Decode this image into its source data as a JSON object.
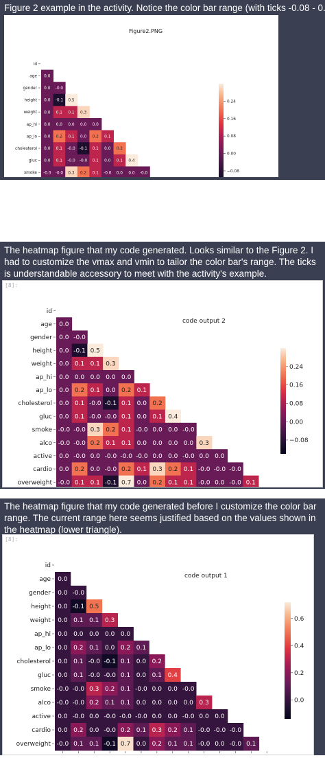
{
  "sections": [
    {
      "caption": "Figure 2 example in the activity. Notice the color bar range (with ticks -0.08 - 0.24)",
      "figure_title": "Figure2.PNG",
      "cell_number": ""
    },
    {
      "caption": "The heatmap figure that my code generated. Looks similar to the Figure 2. I had to customize the vmax and vmin to tailor the color bar's range. The ticks is understandable accessory to meet with the activity's example.",
      "figure_title": "code output 2",
      "cell_number": "[8]:"
    },
    {
      "caption": "The heatmap figure that my code generated before I customize the color bar range. The current range here seems justified based on the values shown in the heatmap (lower triangle).",
      "figure_title": "code output 1",
      "cell_number": "[8]:"
    }
  ],
  "colors": {
    "caption_bg": "#3b3f52",
    "caption_text": "#ffffff",
    "outer_frame": "#3b3f52"
  },
  "chart_data": [
    {
      "type": "heatmap",
      "title": "Figure2.PNG",
      "labels": [
        "id",
        "age",
        "gender",
        "height",
        "weight",
        "ap_hi",
        "ap_lo",
        "cholesterol",
        "gluc",
        "smoke",
        "alco",
        "active",
        "cardio",
        "overweight"
      ],
      "rows": [
        [],
        [
          "0.0"
        ],
        [
          "0.0",
          "-0.0"
        ],
        [
          "0.0",
          "-0.1",
          "0.5"
        ],
        [
          "0.0",
          "0.1",
          "0.1",
          "0.3"
        ],
        [
          "0.0",
          "0.0",
          "0.0",
          "0.0",
          "0.0"
        ],
        [
          "0.0",
          "0.2",
          "0.1",
          "0.0",
          "0.2",
          "0.1"
        ],
        [
          "0.0",
          "0.1",
          "-0.0",
          "-0.1",
          "0.1",
          "0.0",
          "0.2"
        ],
        [
          "0.0",
          "0.1",
          "-0.0",
          "-0.0",
          "0.1",
          "0.0",
          "0.1",
          "0.4"
        ],
        [
          "-0.0",
          "-0.0",
          "0.3",
          "0.2",
          "0.1",
          "-0.0",
          "0.0",
          "0.0",
          "-0.0"
        ],
        [
          "-0.0",
          "-0.0",
          "0.2",
          "0.1",
          "0.1",
          "0.0",
          "0.0",
          "0.0",
          "0.0",
          "0.3"
        ],
        [
          "0.0",
          "-0.0",
          "0.0",
          "-0.0",
          "-0.0",
          "-0.0",
          "0.0",
          "0.0",
          "-0.0",
          "0.0",
          "0.0"
        ],
        [
          "0.0",
          "0.2",
          "0.0",
          "-0.0",
          "0.2",
          "0.1",
          "0.3",
          "0.2",
          "0.1",
          "-0.0",
          "-0.0",
          "-0.0"
        ],
        [
          "-0.0",
          "0.1",
          "0.1",
          "-0.1",
          "0.7",
          "0.0",
          "0.2",
          "0.1",
          "0.1",
          "-0.0",
          "0.0",
          "-0.0",
          "0.1"
        ]
      ],
      "colorbar": {
        "ticks": [
          0.24,
          0.16,
          0.08,
          0.0,
          -0.08
        ],
        "vmin": -0.14,
        "vmax": 0.32
      }
    },
    {
      "type": "heatmap",
      "title": "code output 2",
      "labels": [
        "id",
        "age",
        "gender",
        "height",
        "weight",
        "ap_hi",
        "ap_lo",
        "cholesterol",
        "gluc",
        "smoke",
        "alco",
        "active",
        "cardio",
        "overweight"
      ],
      "rows": [
        [],
        [
          "0.0"
        ],
        [
          "0.0",
          "-0.0"
        ],
        [
          "0.0",
          "-0.1",
          "0.5"
        ],
        [
          "0.0",
          "0.1",
          "0.1",
          "0.3"
        ],
        [
          "0.0",
          "0.0",
          "0.0",
          "0.0",
          "0.0"
        ],
        [
          "0.0",
          "0.2",
          "0.1",
          "0.0",
          "0.2",
          "0.1"
        ],
        [
          "0.0",
          "0.1",
          "-0.0",
          "-0.1",
          "0.1",
          "0.0",
          "0.2"
        ],
        [
          "0.0",
          "0.1",
          "-0.0",
          "-0.0",
          "0.1",
          "0.0",
          "0.1",
          "0.4"
        ],
        [
          "-0.0",
          "-0.0",
          "0.3",
          "0.2",
          "0.1",
          "-0.0",
          "0.0",
          "0.0",
          "-0.0"
        ],
        [
          "-0.0",
          "-0.0",
          "0.2",
          "0.1",
          "0.1",
          "0.0",
          "0.0",
          "0.0",
          "0.0",
          "0.3"
        ],
        [
          "0.0",
          "-0.0",
          "0.0",
          "-0.0",
          "-0.0",
          "-0.0",
          "0.0",
          "0.0",
          "-0.0",
          "0.0",
          "0.0"
        ],
        [
          "0.0",
          "0.2",
          "0.0",
          "-0.0",
          "0.2",
          "0.1",
          "0.3",
          "0.2",
          "0.1",
          "-0.0",
          "-0.0",
          "-0.0"
        ],
        [
          "-0.0",
          "0.1",
          "0.1",
          "-0.1",
          "0.7",
          "0.0",
          "0.2",
          "0.1",
          "0.1",
          "-0.0",
          "0.0",
          "-0.0",
          "0.1"
        ]
      ],
      "colorbar": {
        "ticks": [
          0.24,
          0.16,
          0.08,
          0.0,
          -0.08
        ],
        "vmin": -0.14,
        "vmax": 0.32
      }
    },
    {
      "type": "heatmap",
      "title": "code output 1",
      "labels": [
        "id",
        "age",
        "gender",
        "height",
        "weight",
        "ap_hi",
        "ap_lo",
        "cholesterol",
        "gluc",
        "smoke",
        "alco",
        "active",
        "cardio",
        "overweight"
      ],
      "rows": [
        [],
        [
          "0.0"
        ],
        [
          "0.0",
          "-0.0"
        ],
        [
          "0.0",
          "-0.1",
          "0.5"
        ],
        [
          "0.0",
          "0.1",
          "0.1",
          "0.3"
        ],
        [
          "0.0",
          "0.0",
          "0.0",
          "0.0",
          "0.0"
        ],
        [
          "0.0",
          "0.2",
          "0.1",
          "0.0",
          "0.2",
          "0.1"
        ],
        [
          "0.0",
          "0.1",
          "-0.0",
          "-0.1",
          "0.1",
          "0.0",
          "0.2"
        ],
        [
          "0.0",
          "0.1",
          "-0.0",
          "-0.0",
          "0.1",
          "0.0",
          "0.1",
          "0.4"
        ],
        [
          "-0.0",
          "-0.0",
          "0.3",
          "0.2",
          "0.1",
          "-0.0",
          "0.0",
          "0.0",
          "-0.0"
        ],
        [
          "-0.0",
          "-0.0",
          "0.2",
          "0.1",
          "0.1",
          "0.0",
          "0.0",
          "0.0",
          "0.0",
          "0.3"
        ],
        [
          "0.0",
          "-0.0",
          "0.0",
          "-0.0",
          "-0.0",
          "-0.0",
          "0.0",
          "0.0",
          "-0.0",
          "0.0",
          "0.0"
        ],
        [
          "0.0",
          "0.2",
          "0.0",
          "-0.0",
          "0.2",
          "0.1",
          "0.3",
          "0.2",
          "0.1",
          "-0.0",
          "-0.0",
          "-0.0"
        ],
        [
          "-0.0",
          "0.1",
          "0.1",
          "-0.1",
          "0.7",
          "0.0",
          "0.2",
          "0.1",
          "0.1",
          "-0.0",
          "0.0",
          "-0.0",
          "0.1"
        ]
      ],
      "colorbar": {
        "ticks": [
          0.6,
          0.4,
          0.2,
          0.0
        ],
        "vmin": -0.14,
        "vmax": 0.72
      }
    }
  ]
}
